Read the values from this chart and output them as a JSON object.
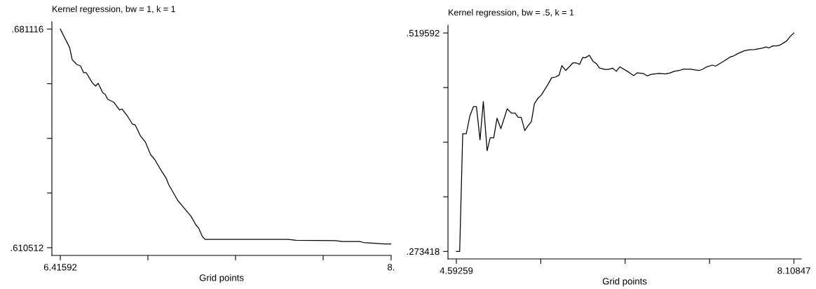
{
  "chart_data": [
    {
      "type": "line",
      "title": "Kernel regression, bw = 1, k = 1",
      "xlabel": "Grid points",
      "xlim": [
        6.3757,
        8.0
      ],
      "xticks": [
        6.41592,
        {
          "value": 6.8354,
          "label": null
        },
        {
          "value": 7.2549,
          "label": null
        },
        {
          "value": 7.6745,
          "label": null
        },
        {
          "value": 7.9996,
          "label": "8."
        }
      ],
      "ylim": [
        0.60802,
        0.68349
      ],
      "yticks": [
        {
          "value": 0.610512,
          "label": ".610512"
        },
        {
          "value": 0.628163,
          "label": null
        },
        {
          "value": 0.645814,
          "label": null
        },
        {
          "value": 0.663465,
          "label": null
        },
        {
          "value": 0.681116,
          "label": ".681116"
        }
      ],
      "grid": false,
      "legend": false,
      "series": [
        {
          "color": "#000000",
          "x": [
            6.41592,
            6.4607,
            6.4731,
            6.4943,
            6.5129,
            6.5278,
            6.5402,
            6.5688,
            6.585,
            6.5974,
            6.6186,
            6.631,
            6.6434,
            6.672,
            6.6994,
            6.7118,
            6.7366,
            6.7615,
            6.7739,
            6.7988,
            6.8236,
            6.8485,
            6.8672,
            6.892,
            6.9231,
            6.9355,
            6.979,
            7.0039,
            7.0412,
            7.066,
            7.0785,
            7.0971,
            7.1095,
            7.5073,
            7.5446,
            7.7311,
            7.7684,
            7.8492,
            7.8678,
            7.93,
            7.9673,
            7.9996
          ],
          "values": [
            0.6811,
            0.6751,
            0.6712,
            0.6697,
            0.6692,
            0.667,
            0.667,
            0.6638,
            0.6627,
            0.6636,
            0.6606,
            0.66,
            0.6584,
            0.6575,
            0.655,
            0.6553,
            0.6531,
            0.6504,
            0.6502,
            0.6467,
            0.6446,
            0.6405,
            0.6391,
            0.6362,
            0.6329,
            0.6308,
            0.6257,
            0.6237,
            0.6207,
            0.6178,
            0.6168,
            0.614,
            0.6132,
            0.6132,
            0.6129,
            0.6128,
            0.6125,
            0.6125,
            0.6122,
            0.6119,
            0.6117,
            0.6117
          ]
        }
      ]
    },
    {
      "type": "line",
      "title": "Kernel regression, bw = .5, k = 1",
      "xlabel": "Grid points",
      "xlim": [
        4.5052,
        8.1852
      ],
      "xticks": [
        4.59259,
        {
          "value": 5.47156,
          "label": null
        },
        {
          "value": 6.35053,
          "label": null
        },
        {
          "value": 7.2295,
          "label": null
        },
        8.10847
      ],
      "ylim": [
        0.26496,
        0.52834
      ],
      "yticks": [
        {
          "value": 0.273418,
          "label": ".273418"
        },
        {
          "value": 0.334962,
          "label": null
        },
        {
          "value": 0.396505,
          "label": null
        },
        {
          "value": 0.458049,
          "label": null
        },
        {
          "value": 0.519592,
          "label": ".519592"
        }
      ],
      "grid": false,
      "legend": false,
      "series": [
        {
          "color": "#000000",
          "x": [
            4.5926,
            4.627,
            4.6588,
            4.6958,
            4.7329,
            4.77,
            4.8018,
            4.8388,
            4.8732,
            4.913,
            4.9447,
            4.9818,
            5.0162,
            5.0559,
            5.1221,
            5.1671,
            5.2042,
            5.236,
            5.2677,
            5.3048,
            5.3445,
            5.3736,
            5.4054,
            5.4451,
            5.4769,
            5.5431,
            5.5854,
            5.6252,
            5.6622,
            5.6913,
            5.7311,
            5.7681,
            5.8052,
            5.8423,
            5.8767,
            5.9085,
            5.9349,
            5.9773,
            6.0143,
            6.0514,
            6.0832,
            6.1335,
            6.1785,
            6.2209,
            6.2582,
            6.2952,
            6.3851,
            6.4379,
            6.4776,
            6.5438,
            6.5809,
            6.618,
            6.7026,
            6.7689,
            6.8165,
            6.8615,
            6.9145,
            6.9542,
            7.0336,
            7.0733,
            7.121,
            7.1528,
            7.2004,
            7.2587,
            7.2904,
            7.3778,
            7.444,
            7.4784,
            7.5234,
            7.5896,
            7.6425,
            7.6955,
            7.7749,
            7.8199,
            7.8464,
            7.8887,
            7.9258,
            7.9682,
            8.0317,
            8.0714,
            8.10847
          ],
          "values": [
            0.2734,
            0.2734,
            0.4061,
            0.4061,
            0.426,
            0.4365,
            0.4365,
            0.3991,
            0.4423,
            0.3869,
            0.4015,
            0.4015,
            0.4236,
            0.4117,
            0.4341,
            0.4292,
            0.4292,
            0.4245,
            0.4245,
            0.4096,
            0.4158,
            0.4196,
            0.44,
            0.4464,
            0.4496,
            0.461,
            0.4691,
            0.47,
            0.4721,
            0.4828,
            0.4773,
            0.4814,
            0.4858,
            0.4858,
            0.4843,
            0.4919,
            0.4916,
            0.4945,
            0.4878,
            0.4849,
            0.4802,
            0.4785,
            0.4785,
            0.4799,
            0.4764,
            0.4814,
            0.4756,
            0.4715,
            0.4747,
            0.4738,
            0.4712,
            0.4729,
            0.4741,
            0.4735,
            0.4744,
            0.4764,
            0.4773,
            0.4787,
            0.4787,
            0.4779,
            0.4773,
            0.4785,
            0.4814,
            0.4834,
            0.4822,
            0.4878,
            0.4925,
            0.4936,
            0.4963,
            0.4995,
            0.5006,
            0.5009,
            0.5024,
            0.5038,
            0.5027,
            0.505,
            0.505,
            0.5062,
            0.5105,
            0.5158,
            0.5196
          ]
        }
      ]
    }
  ]
}
